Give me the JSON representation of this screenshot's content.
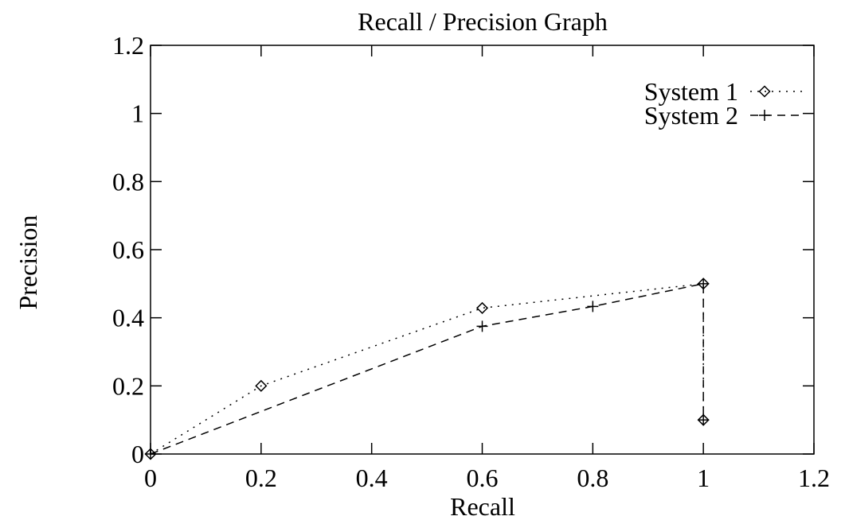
{
  "chart_data": {
    "type": "line",
    "title": "Recall / Precision Graph",
    "xlabel": "Recall",
    "ylabel": "Precision",
    "xlim": [
      0,
      1.2
    ],
    "ylim": [
      0,
      1.2
    ],
    "xticks": [
      "0",
      "0.2",
      "0.4",
      "0.6",
      "0.8",
      "1",
      "1.2"
    ],
    "yticks": [
      "0",
      "0.2",
      "0.4",
      "0.6",
      "0.8",
      "1",
      "1.2"
    ],
    "grid": false,
    "legend_position": "top-right",
    "series": [
      {
        "name": "System 1",
        "marker": "diamond",
        "line_style": "dotted",
        "color": "#000000",
        "points": [
          [
            0,
            0
          ],
          [
            0.2,
            0.2
          ],
          [
            0.6,
            0.4286
          ],
          [
            1.0,
            0.5
          ],
          [
            1.0,
            0.1
          ]
        ]
      },
      {
        "name": "System 2",
        "marker": "plus",
        "line_style": "dashed",
        "color": "#000000",
        "points": [
          [
            0,
            0
          ],
          [
            0.6,
            0.375
          ],
          [
            0.8,
            0.4333
          ],
          [
            1.0,
            0.5
          ],
          [
            1.0,
            0.1
          ]
        ]
      }
    ]
  }
}
